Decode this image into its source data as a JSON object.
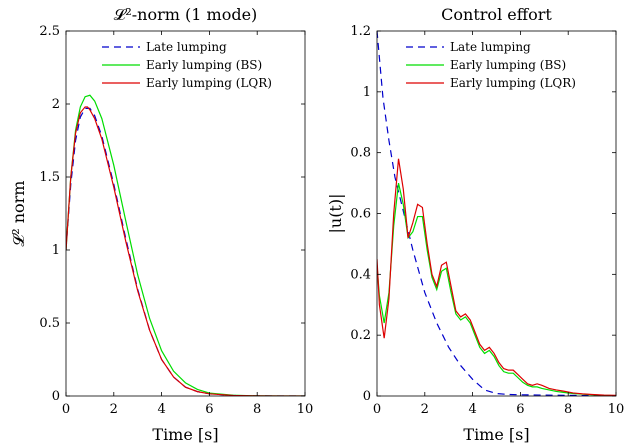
{
  "figure_colors": {
    "late": "#0000cc",
    "bs": "#00dd00",
    "lqr": "#dd0000",
    "axis": "#000000"
  },
  "chart_data": [
    {
      "type": "line",
      "title": "𝓛²-norm (1 mode)",
      "xlabel": "Time [s]",
      "ylabel": "𝓛² norm",
      "xlim": [
        0,
        10
      ],
      "ylim": [
        0,
        2.5
      ],
      "xticks": [
        0,
        2,
        4,
        6,
        8,
        10
      ],
      "yticks": [
        0,
        0.5,
        1,
        1.5,
        2,
        2.5
      ],
      "xtick_labels": [
        "0",
        "2",
        "4",
        "6",
        "8",
        "10"
      ],
      "ytick_labels": [
        "0",
        "0.5",
        "1",
        "1.5",
        "2",
        "2.5"
      ],
      "grid": false,
      "legend": "top-center",
      "series": [
        {
          "name": "Late lumping",
          "style": "dashed",
          "color": "#0000cc",
          "x": [
            0,
            0.2,
            0.4,
            0.6,
            0.8,
            1.0,
            1.2,
            1.5,
            2.0,
            2.5,
            3.0,
            3.5,
            4.0,
            4.5,
            5.0,
            5.5,
            6.0,
            7.0,
            8.0,
            9.0,
            10.0
          ],
          "y": [
            1.0,
            1.45,
            1.75,
            1.91,
            1.97,
            1.97,
            1.92,
            1.78,
            1.45,
            1.08,
            0.73,
            0.45,
            0.25,
            0.13,
            0.06,
            0.03,
            0.015,
            0.004,
            0.001,
            0,
            0
          ]
        },
        {
          "name": "Early lumping (BS)",
          "style": "solid",
          "color": "#00dd00",
          "x": [
            0,
            0.2,
            0.4,
            0.6,
            0.8,
            1.0,
            1.2,
            1.5,
            2.0,
            2.5,
            3.0,
            3.5,
            4.0,
            4.5,
            5.0,
            5.5,
            6.0,
            7.0,
            8.0,
            9.0,
            10.0
          ],
          "y": [
            1.0,
            1.5,
            1.82,
            1.98,
            2.05,
            2.06,
            2.02,
            1.9,
            1.58,
            1.2,
            0.83,
            0.53,
            0.31,
            0.17,
            0.09,
            0.045,
            0.02,
            0.005,
            0.001,
            0,
            0
          ]
        },
        {
          "name": "Early lumping (LQR)",
          "style": "solid",
          "color": "#dd0000",
          "x": [
            0,
            0.2,
            0.4,
            0.6,
            0.8,
            0.9,
            1.0,
            1.2,
            1.5,
            2.0,
            2.5,
            3.0,
            3.5,
            4.0,
            4.5,
            5.0,
            5.5,
            6.0,
            7.0,
            8.0,
            9.0,
            10.0
          ],
          "y": [
            1.0,
            1.5,
            1.8,
            1.94,
            1.98,
            1.98,
            1.96,
            1.9,
            1.76,
            1.43,
            1.06,
            0.72,
            0.45,
            0.25,
            0.13,
            0.06,
            0.03,
            0.015,
            0.004,
            0.001,
            0,
            0
          ]
        }
      ]
    },
    {
      "type": "line",
      "title": "Control effort",
      "xlabel": "Time [s]",
      "ylabel": "|u(t)|",
      "xlim": [
        0,
        10
      ],
      "ylim": [
        0,
        1.2
      ],
      "xticks": [
        0,
        2,
        4,
        6,
        8,
        10
      ],
      "yticks": [
        0,
        0.2,
        0.4,
        0.6,
        0.8,
        1,
        1.2
      ],
      "xtick_labels": [
        "0",
        "2",
        "4",
        "6",
        "8",
        "10"
      ],
      "ytick_labels": [
        "0",
        "0.2",
        "0.4",
        "0.6",
        "0.8",
        "1",
        "1.2"
      ],
      "grid": false,
      "legend": "top-right",
      "series": [
        {
          "name": "Late lumping",
          "style": "dashed",
          "color": "#0000cc",
          "x": [
            0,
            0.25,
            0.5,
            0.75,
            1.0,
            1.25,
            1.5,
            2.0,
            2.5,
            3.0,
            3.5,
            4.0,
            4.5,
            5.0,
            5.5,
            6.0,
            7.0,
            8.0,
            9.0,
            10.0
          ],
          "y": [
            1.2,
            0.98,
            0.84,
            0.72,
            0.64,
            0.56,
            0.48,
            0.34,
            0.24,
            0.16,
            0.1,
            0.055,
            0.02,
            0.008,
            0.005,
            0.004,
            0.003,
            0.002,
            0.001,
            0
          ]
        },
        {
          "name": "Early lumping (BS)",
          "style": "solid",
          "color": "#00dd00",
          "x": [
            0,
            0.1,
            0.3,
            0.5,
            0.7,
            0.9,
            1.1,
            1.3,
            1.5,
            1.7,
            1.9,
            2.1,
            2.3,
            2.5,
            2.7,
            2.9,
            3.1,
            3.3,
            3.5,
            3.7,
            3.9,
            4.1,
            4.3,
            4.5,
            4.7,
            4.9,
            5.1,
            5.3,
            5.5,
            5.7,
            5.9,
            6.1,
            6.3,
            6.5,
            6.7,
            6.9,
            7.2,
            7.5,
            7.8,
            8.2,
            8.6,
            9.0,
            9.5,
            10.0
          ],
          "y": [
            0.43,
            0.33,
            0.24,
            0.34,
            0.56,
            0.7,
            0.63,
            0.52,
            0.54,
            0.59,
            0.59,
            0.48,
            0.39,
            0.35,
            0.41,
            0.42,
            0.34,
            0.27,
            0.25,
            0.26,
            0.24,
            0.2,
            0.16,
            0.14,
            0.15,
            0.13,
            0.1,
            0.08,
            0.075,
            0.075,
            0.06,
            0.045,
            0.035,
            0.03,
            0.03,
            0.025,
            0.02,
            0.015,
            0.012,
            0.008,
            0.006,
            0.004,
            0.002,
            0.001
          ]
        },
        {
          "name": "Early lumping (LQR)",
          "style": "solid",
          "color": "#dd0000",
          "x": [
            0,
            0.1,
            0.3,
            0.5,
            0.7,
            0.9,
            1.1,
            1.3,
            1.5,
            1.7,
            1.9,
            2.1,
            2.3,
            2.5,
            2.7,
            2.9,
            3.1,
            3.3,
            3.5,
            3.7,
            3.9,
            4.1,
            4.3,
            4.5,
            4.7,
            4.9,
            5.1,
            5.3,
            5.5,
            5.7,
            5.9,
            6.1,
            6.3,
            6.5,
            6.7,
            6.9,
            7.2,
            7.5,
            7.8,
            8.2,
            8.6,
            9.0,
            9.5,
            10.0
          ],
          "y": [
            0.45,
            0.3,
            0.19,
            0.32,
            0.6,
            0.78,
            0.68,
            0.52,
            0.57,
            0.63,
            0.62,
            0.5,
            0.4,
            0.36,
            0.43,
            0.44,
            0.36,
            0.28,
            0.26,
            0.27,
            0.25,
            0.21,
            0.17,
            0.15,
            0.16,
            0.14,
            0.11,
            0.09,
            0.085,
            0.085,
            0.07,
            0.055,
            0.04,
            0.035,
            0.04,
            0.035,
            0.025,
            0.02,
            0.016,
            0.01,
            0.007,
            0.005,
            0.003,
            0.002
          ]
        }
      ]
    }
  ]
}
